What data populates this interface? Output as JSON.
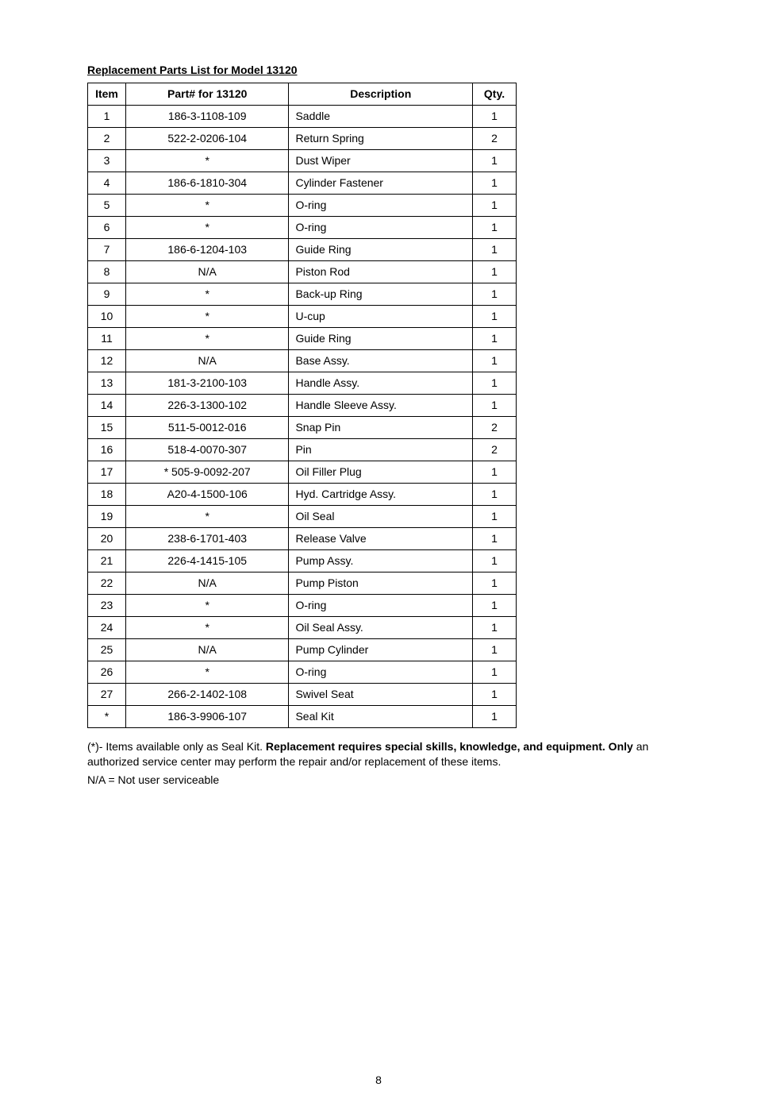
{
  "title": "Replacement Parts List for Model 13120",
  "table": {
    "headers": {
      "item": "Item",
      "part": "Part# for 13120",
      "desc": "Description",
      "qty": "Qty."
    },
    "rows": [
      {
        "item": "1",
        "part": "186-3-1108-109",
        "desc": "Saddle",
        "qty": "1"
      },
      {
        "item": "2",
        "part": "522-2-0206-104",
        "desc": "Return Spring",
        "qty": "2"
      },
      {
        "item": "3",
        "part": "*",
        "desc": "Dust Wiper",
        "qty": "1"
      },
      {
        "item": "4",
        "part": "186-6-1810-304",
        "desc": "Cylinder Fastener",
        "qty": "1"
      },
      {
        "item": "5",
        "part": "*",
        "desc": "O-ring",
        "qty": "1"
      },
      {
        "item": "6",
        "part": "*",
        "desc": "O-ring",
        "qty": "1"
      },
      {
        "item": "7",
        "part": "186-6-1204-103",
        "desc": "Guide Ring",
        "qty": "1"
      },
      {
        "item": "8",
        "part": "N/A",
        "desc": "Piston Rod",
        "qty": "1"
      },
      {
        "item": "9",
        "part": "*",
        "desc": "Back-up Ring",
        "qty": "1"
      },
      {
        "item": "10",
        "part": "*",
        "desc": "U-cup",
        "qty": "1"
      },
      {
        "item": "11",
        "part": "*",
        "desc": "Guide Ring",
        "qty": "1"
      },
      {
        "item": "12",
        "part": "N/A",
        "desc": "Base Assy.",
        "qty": "1"
      },
      {
        "item": "13",
        "part": "181-3-2100-103",
        "desc": "Handle Assy.",
        "qty": "1"
      },
      {
        "item": "14",
        "part": "226-3-1300-102",
        "desc": "Handle Sleeve Assy.",
        "qty": "1"
      },
      {
        "item": "15",
        "part": "511-5-0012-016",
        "desc": "Snap Pin",
        "qty": "2"
      },
      {
        "item": "16",
        "part": "518-4-0070-307",
        "desc": "Pin",
        "qty": "2"
      },
      {
        "item": "17",
        "part": "* 505-9-0092-207",
        "desc": "Oil Filler Plug",
        "qty": "1"
      },
      {
        "item": "18",
        "part": "A20-4-1500-106",
        "desc": "Hyd. Cartridge Assy.",
        "qty": "1"
      },
      {
        "item": "19",
        "part": "*",
        "desc": "Oil Seal",
        "qty": "1"
      },
      {
        "item": "20",
        "part": "238-6-1701-403",
        "desc": "Release Valve",
        "qty": "1"
      },
      {
        "item": "21",
        "part": "226-4-1415-105",
        "desc": "Pump Assy.",
        "qty": "1"
      },
      {
        "item": "22",
        "part": "N/A",
        "desc": "Pump Piston",
        "qty": "1"
      },
      {
        "item": "23",
        "part": "*",
        "desc": "O-ring",
        "qty": "1"
      },
      {
        "item": "24",
        "part": "*",
        "desc": "Oil Seal Assy.",
        "qty": "1"
      },
      {
        "item": "25",
        "part": "N/A",
        "desc": "Pump Cylinder",
        "qty": "1"
      },
      {
        "item": "26",
        "part": "*",
        "desc": "O-ring",
        "qty": "1"
      },
      {
        "item": "27",
        "part": "266-2-1402-108",
        "desc": "Swivel Seat",
        "qty": "1"
      },
      {
        "item": "*",
        "part": "186-3-9906-107",
        "desc": "Seal Kit",
        "qty": "1"
      }
    ]
  },
  "footnote": {
    "prefix": "(*)- Items available only as Seal Kit. ",
    "bold": "Replacement requires special skills, knowledge, and equipment. Only",
    "line2": " an authorized service center may perform the repair and/or replacement of these items.",
    "na": "N/A = Not user serviceable"
  },
  "pageNumber": "8"
}
